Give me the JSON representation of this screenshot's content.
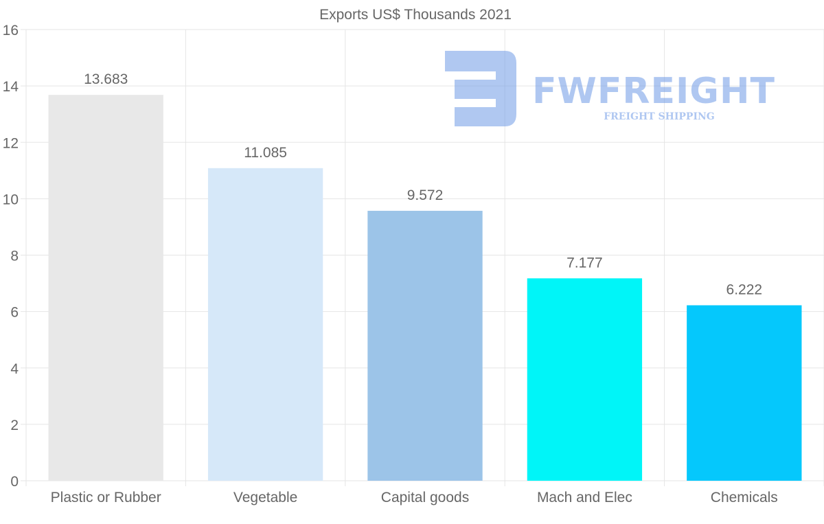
{
  "chart_data": {
    "type": "bar",
    "title": "Exports US$ Thousands 2021",
    "categories": [
      "Plastic or Rubber",
      "Vegetable",
      "Capital goods",
      "Mach and Elec",
      "Chemicals"
    ],
    "values": [
      13.683,
      11.085,
      9.572,
      7.177,
      6.222
    ],
    "value_labels": [
      "13.683",
      "11.085",
      "9.572",
      "7.177",
      "6.222"
    ],
    "colors": [
      "#e8e8e8",
      "#d6e8f9",
      "#9cc4e8",
      "#00f5f8",
      "#05c8fc"
    ],
    "ylim": [
      0,
      16
    ],
    "yticks": [
      0,
      2,
      4,
      6,
      8,
      10,
      12,
      14,
      16
    ],
    "xlabel": "",
    "ylabel": "",
    "grid": true,
    "legend": "none"
  },
  "watermark": {
    "brand": "FWFREIGHT",
    "tagline": "FREIGHT SHIPPING",
    "color": "#6f9be6"
  }
}
